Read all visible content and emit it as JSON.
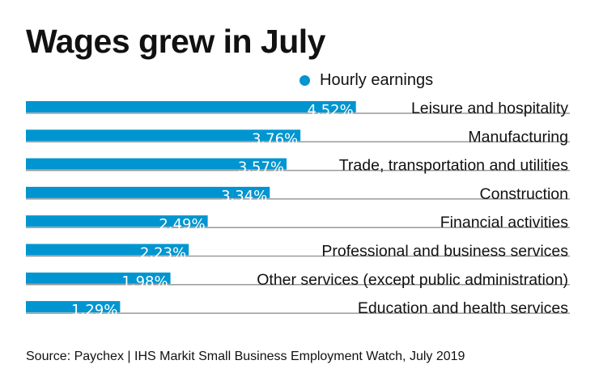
{
  "chart_data": {
    "type": "bar",
    "orientation": "horizontal",
    "title": "Wages grew in July",
    "legend": {
      "position": "top-right"
    },
    "categories": [
      "Leisure and hospitality",
      "Manufacturing",
      "Trade, transportation and utilities",
      "Construction",
      "Financial activities",
      "Professional and business services",
      "Other services (except public administration)",
      "Education and health services"
    ],
    "series": [
      {
        "name": "Hourly earnings",
        "values": [
          4.52,
          3.76,
          3.57,
          3.34,
          2.49,
          2.23,
          1.98,
          1.29
        ],
        "color": "#0095d0"
      }
    ],
    "data_labels": [
      "4.52%",
      "3.76%",
      "3.57%",
      "3.34%",
      "2.49%",
      "2.23%",
      "1.98%",
      "1.29%"
    ],
    "xlim": [
      0,
      7.45
    ],
    "grid": false,
    "baseline_color": "#9a9a9a"
  },
  "source": "Source: Paychex | IHS Markit Small Business Employment Watch, July 2019"
}
